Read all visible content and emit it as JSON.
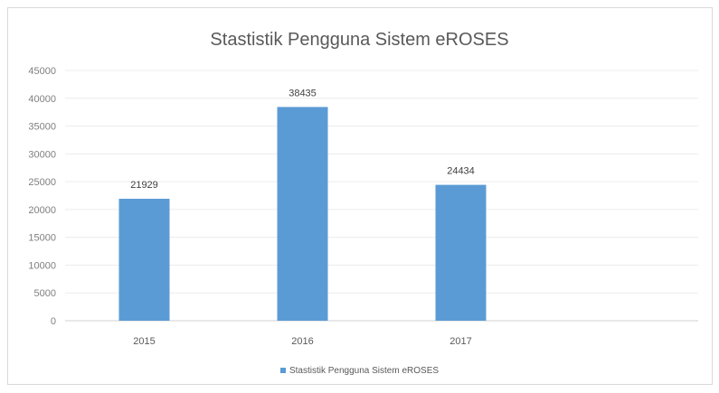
{
  "chart_data": {
    "type": "bar",
    "title": "Stastistik Pengguna Sistem eROSES",
    "categories": [
      "2015",
      "2016",
      "2017"
    ],
    "series": [
      {
        "name": "Stastistik Pengguna Sistem eROSES",
        "values": [
          21929,
          38435,
          24434
        ],
        "color": "#5b9bd5"
      }
    ],
    "y_ticks": [
      "0",
      "5000",
      "10000",
      "15000",
      "20000",
      "25000",
      "30000",
      "35000",
      "40000",
      "45000"
    ],
    "ylim": [
      0,
      45000
    ],
    "grid": true,
    "legend_position": "bottom",
    "data_labels": true
  }
}
